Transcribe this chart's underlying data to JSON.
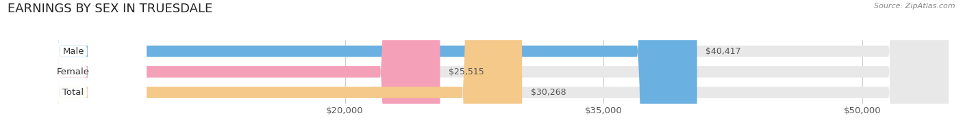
{
  "title": "EARNINGS BY SEX IN TRUESDALE",
  "source": "Source: ZipAtlas.com",
  "categories": [
    "Male",
    "Female",
    "Total"
  ],
  "values": [
    40417,
    25515,
    30268
  ],
  "bar_colors": [
    "#6ab0e0",
    "#f4a0b8",
    "#f5c98a"
  ],
  "bar_bg_color": "#e8e8e8",
  "xmin": 0,
  "xmax": 55000,
  "xticks": [
    20000,
    35000,
    50000
  ],
  "xtick_labels": [
    "$20,000",
    "$35,000",
    "$50,000"
  ],
  "grid_color": "#cccccc",
  "background_color": "#ffffff",
  "bar_height": 0.55,
  "title_fontsize": 13,
  "label_fontsize": 9.5,
  "value_fontsize": 9,
  "source_fontsize": 8
}
